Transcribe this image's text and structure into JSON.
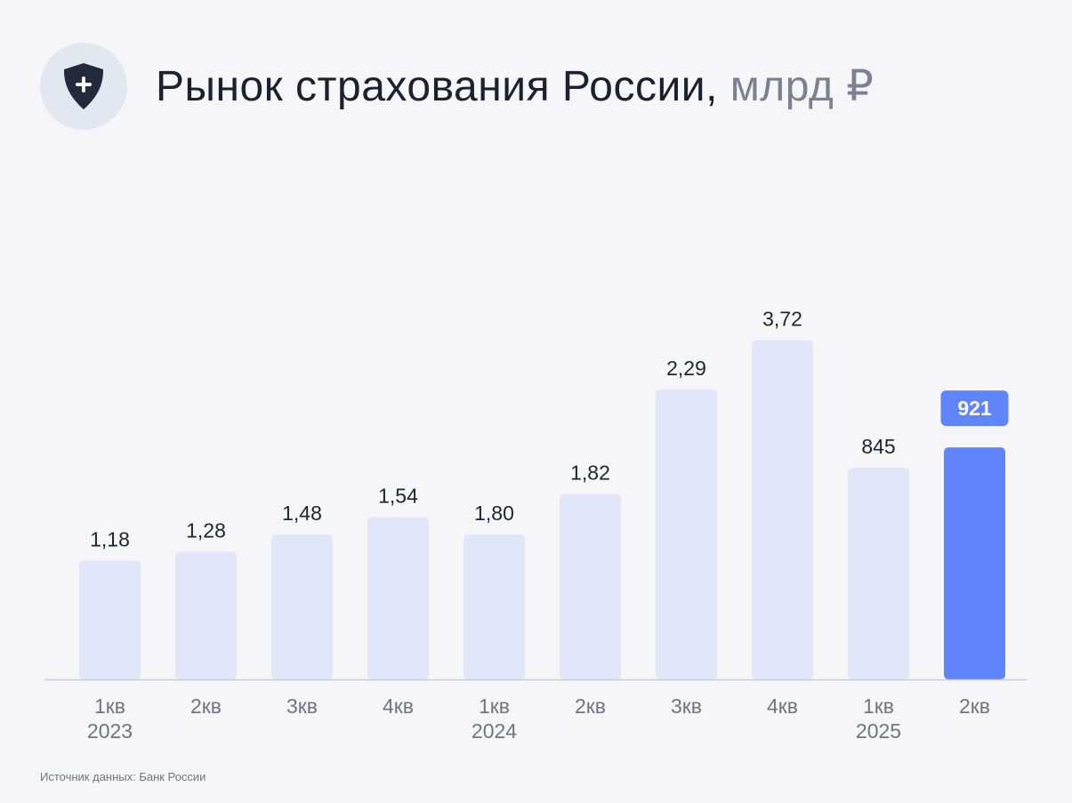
{
  "header": {
    "title": "Рынок страхования России,",
    "unit": "млрд ₽"
  },
  "source": "Источник данных: Банк России",
  "colors": {
    "bar": "#e1e6fb",
    "highlight": "#6084fc",
    "axis": "#c8ccd6",
    "icon": "#232a3b"
  },
  "chart_data": {
    "type": "bar",
    "categories": [
      {
        "quarter": "1кв",
        "year": "2023"
      },
      {
        "quarter": "2кв",
        "year": ""
      },
      {
        "quarter": "3кв",
        "year": ""
      },
      {
        "quarter": "4кв",
        "year": ""
      },
      {
        "quarter": "1кв",
        "year": "2024"
      },
      {
        "quarter": "2кв",
        "year": ""
      },
      {
        "quarter": "3кв",
        "year": ""
      },
      {
        "quarter": "4кв",
        "year": ""
      },
      {
        "quarter": "1кв",
        "year": "2025"
      },
      {
        "quarter": "2кв",
        "year": ""
      }
    ],
    "values": [
      1.18,
      1.28,
      1.48,
      1.54,
      1.8,
      1.82,
      2.29,
      3.72,
      845,
      921
    ],
    "value_labels": [
      "1,18",
      "1,28",
      "1,48",
      "1,54",
      "1,80",
      "1,82",
      "2,29",
      "3,72",
      "845",
      "921"
    ],
    "highlight_index": 9,
    "title": "Рынок страхования России, млрд ₽",
    "xlabel": "",
    "ylabel": "",
    "grid": false
  }
}
